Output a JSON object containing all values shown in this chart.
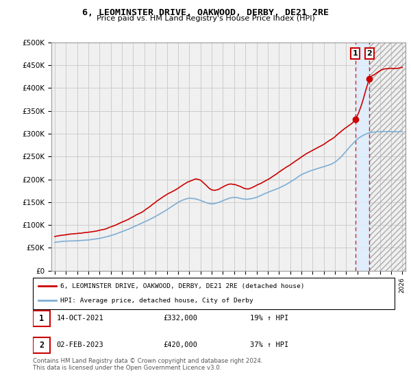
{
  "title": "6, LEOMINSTER DRIVE, OAKWOOD, DERBY, DE21 2RE",
  "subtitle": "Price paid vs. HM Land Registry's House Price Index (HPI)",
  "ylabel_ticks": [
    "£0",
    "£50K",
    "£100K",
    "£150K",
    "£200K",
    "£250K",
    "£300K",
    "£350K",
    "£400K",
    "£450K",
    "£500K"
  ],
  "ytick_values": [
    0,
    50000,
    100000,
    150000,
    200000,
    250000,
    300000,
    350000,
    400000,
    450000,
    500000
  ],
  "xlim_left": 1994.7,
  "xlim_right": 2026.3,
  "ylim": [
    0,
    500000
  ],
  "transaction1_year": 2021.8,
  "transaction1_price": 332000,
  "transaction2_year": 2023.08,
  "transaction2_price": 420000,
  "transaction1_date": "14-OCT-2021",
  "transaction1_amount": "£332,000",
  "transaction1_hpi": "19% ↑ HPI",
  "transaction2_date": "02-FEB-2023",
  "transaction2_amount": "£420,000",
  "transaction2_hpi": "37% ↑ HPI",
  "red_color": "#cc0000",
  "blue_color": "#7dadd4",
  "grid_color": "#cccccc",
  "bg_color": "#f0f0f0",
  "shade_color": "#ddeeff",
  "legend_label1": "6, LEOMINSTER DRIVE, OAKWOOD, DERBY, DE21 2RE (detached house)",
  "legend_label2": "HPI: Average price, detached house, City of Derby",
  "footnote": "Contains HM Land Registry data © Crown copyright and database right 2024.\nThis data is licensed under the Open Government Licence v3.0.",
  "xtick_years": [
    1995,
    1996,
    1997,
    1998,
    1999,
    2000,
    2001,
    2002,
    2003,
    2004,
    2005,
    2006,
    2007,
    2008,
    2009,
    2010,
    2011,
    2012,
    2013,
    2014,
    2015,
    2016,
    2017,
    2018,
    2019,
    2020,
    2021,
    2022,
    2023,
    2024,
    2025,
    2026
  ]
}
